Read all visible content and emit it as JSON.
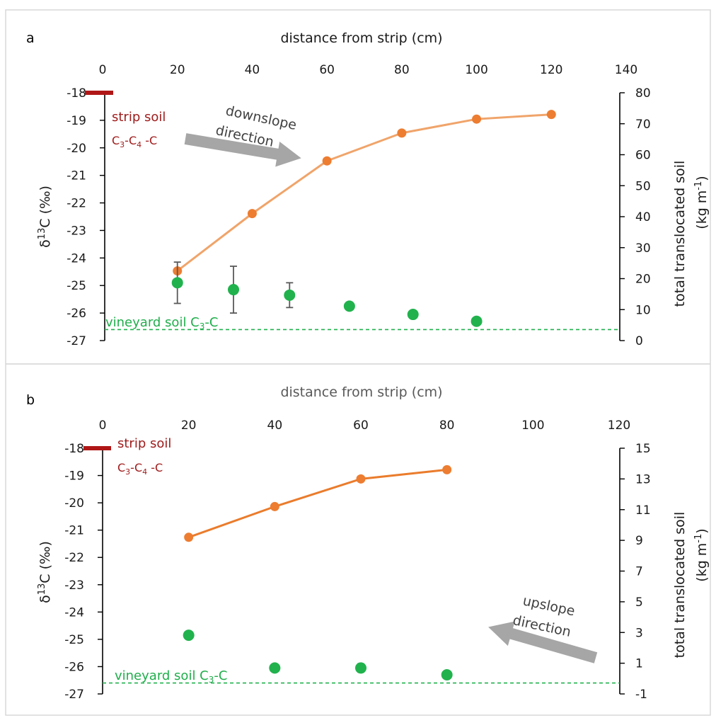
{
  "colors": {
    "orange_a": "#f0a46a",
    "orange_b": "#ea7c2c",
    "orange_marker": "#ed7d31",
    "green": "#21b24d",
    "strip_red": "#b01616",
    "arrow_gray": "#a6a6a6",
    "errorbar": "#595959"
  },
  "chart_data": [
    {
      "panel": "a",
      "type": "scatter",
      "title": "",
      "xlabel": "distance from strip (cm)",
      "x_position": "top",
      "xlim": [
        0,
        140
      ],
      "x_ticks": [
        "0",
        "20",
        "40",
        "60",
        "80",
        "100",
        "120",
        "140"
      ],
      "ylabel_left": "δ13C (‰)",
      "ylim_left": [
        -27,
        -18
      ],
      "y_ticks_left": [
        "-18",
        "-19",
        "-20",
        "-21",
        "-22",
        "-23",
        "-24",
        "-25",
        "-26",
        "-27"
      ],
      "ylabel_right": "total translocated soil (kg m-1)",
      "ylim_right": [
        0,
        80
      ],
      "y_ticks_right": [
        "80",
        "70",
        "60",
        "50",
        "40",
        "30",
        "20",
        "10",
        "0"
      ],
      "grid": false,
      "series": [
        {
          "axis": "right",
          "style": "line+markers",
          "x": [
            20,
            40,
            60,
            80,
            100,
            120
          ],
          "y": [
            22.5,
            41,
            58,
            67,
            71.5,
            73
          ]
        },
        {
          "axis": "left",
          "style": "markers",
          "x": [
            20,
            35,
            50,
            66,
            83,
            100
          ],
          "y": [
            -24.9,
            -25.15,
            -25.35,
            -25.75,
            -26.05,
            -26.3
          ],
          "error": [
            0.75,
            0.85,
            0.45,
            null,
            null,
            null
          ]
        }
      ],
      "reference_lines": [
        {
          "axis": "left",
          "y": -18,
          "label": "strip soil",
          "sublabel": "C3-C4 -C"
        },
        {
          "axis": "left",
          "y": -26.6,
          "label": "vineyard soil C3-C"
        }
      ],
      "annotations": [
        {
          "text_line1": "downslope",
          "text_line2": "direction",
          "arrow": "right-down"
        }
      ]
    },
    {
      "panel": "b",
      "type": "scatter",
      "title": "",
      "xlabel": "distance from strip (cm)",
      "x_position": "top",
      "xlim": [
        0,
        120
      ],
      "x_ticks": [
        "0",
        "20",
        "40",
        "60",
        "80",
        "100",
        "120"
      ],
      "ylabel_left": "δ13C (‰)",
      "ylim_left": [
        -27,
        -18
      ],
      "y_ticks_left": [
        "-18",
        "-19",
        "-20",
        "-21",
        "-22",
        "-23",
        "-24",
        "-25",
        "-26",
        "-27"
      ],
      "ylabel_right": "total translocated soil (kg m-1)",
      "ylim_right": [
        -1,
        15
      ],
      "y_ticks_right": [
        "15",
        "13",
        "11",
        "9",
        "7",
        "5",
        "3",
        "1",
        "-1"
      ],
      "grid": false,
      "series": [
        {
          "axis": "right",
          "style": "line+markers",
          "x": [
            20,
            40,
            60,
            80
          ],
          "y": [
            9.2,
            11.2,
            13.0,
            13.6
          ]
        },
        {
          "axis": "left",
          "style": "markers",
          "x": [
            20,
            40,
            60,
            80
          ],
          "y": [
            -24.85,
            -26.05,
            -26.05,
            -26.3
          ],
          "error": [
            null,
            null,
            0.15,
            null
          ]
        }
      ],
      "reference_lines": [
        {
          "axis": "left",
          "y": -18,
          "label": "strip soil",
          "sublabel": "C3-C4 -C"
        },
        {
          "axis": "left",
          "y": -26.6,
          "label": "vineyard soil C3-C"
        }
      ],
      "annotations": [
        {
          "text_line1": "upslope",
          "text_line2": "direction",
          "arrow": "left-down"
        }
      ]
    }
  ],
  "labels": {
    "panel_a": "a",
    "panel_b": "b",
    "xlabel_a": "distance from strip (cm)",
    "xlabel_b": "distance from strip (cm)",
    "ylabel_left_pre": "δ",
    "ylabel_left_sup": "13",
    "ylabel_left_post": "C (‰)",
    "ylabel_right_line1": "total translocated soil",
    "ylabel_right_line2_pre": "(kg m",
    "ylabel_right_line2_sup": "-1",
    "ylabel_right_line2_post": ")",
    "strip_soil": "strip soil",
    "c3c4_c": "C",
    "c3c4_sub3": "3",
    "c3c4_dash": "-C",
    "c3c4_sub4": "4",
    "c3c4_tail": " -C",
    "vineyard_soil": "vineyard soil C",
    "vineyard_sub3": "3",
    "vineyard_tail": "-C",
    "downslope_1": "downslope",
    "downslope_2": "direction",
    "upslope_1": "upslope",
    "upslope_2": "direction"
  }
}
